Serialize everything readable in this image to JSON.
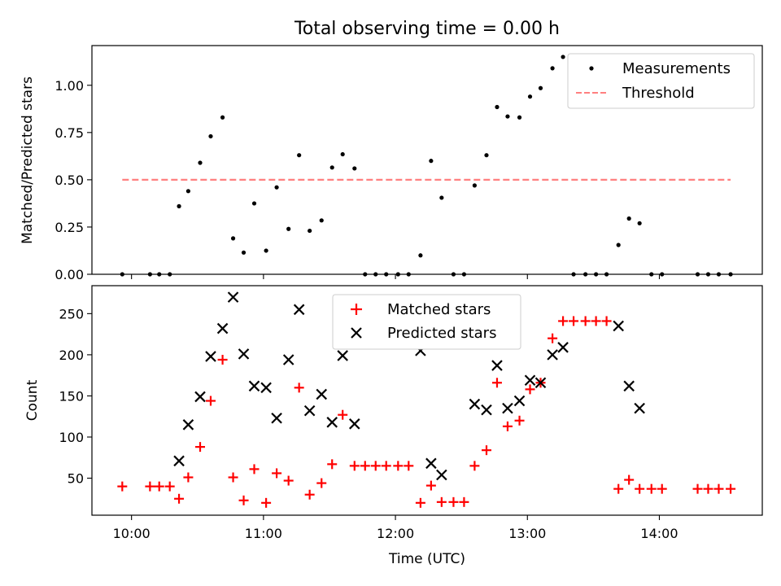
{
  "figure_title": "Total observing time = 0.00 h",
  "colors": {
    "measurement": "#000000",
    "threshold": "#ff8080",
    "matched": "#ff0000",
    "predicted": "#000000"
  },
  "chart_data": [
    {
      "type": "scatter",
      "panel": "top",
      "title": "Total observing time = 0.00 h",
      "xlabel": "",
      "ylabel": "Matched/Predicted stars",
      "xlim_hours": [
        9.7,
        14.78
      ],
      "ylim": [
        0,
        1.21
      ],
      "yticks": [
        0.0,
        0.25,
        0.5,
        0.75,
        1.0
      ],
      "ytick_labels": [
        "0.00",
        "0.25",
        "0.50",
        "0.75",
        "1.00"
      ],
      "xticks_hours": [
        10,
        11,
        12,
        13,
        14
      ],
      "legend": {
        "position": "top-right",
        "entries": [
          "Measurements",
          "Threshold"
        ]
      },
      "series": [
        {
          "name": "Measurements",
          "marker": "dot",
          "x": [
            9.93,
            10.14,
            10.21,
            10.29,
            10.36,
            10.43,
            10.52,
            10.6,
            10.69,
            10.77,
            10.85,
            10.93,
            11.02,
            11.1,
            11.19,
            11.27,
            11.35,
            11.44,
            11.52,
            11.6,
            11.69,
            11.77,
            11.85,
            11.93,
            12.02,
            12.1,
            12.19,
            12.27,
            12.35,
            12.44,
            12.52,
            12.6,
            12.69,
            12.77,
            12.85,
            12.94,
            13.02,
            13.1,
            13.19,
            13.27,
            13.35,
            13.44,
            13.52,
            13.6,
            13.69,
            13.77,
            13.85,
            13.94,
            14.02,
            14.29,
            14.37,
            14.45,
            14.54
          ],
          "y": [
            0.0,
            0.0,
            0.0,
            0.0,
            0.36,
            0.44,
            0.59,
            0.73,
            0.83,
            0.19,
            0.115,
            0.375,
            0.125,
            0.46,
            0.24,
            0.63,
            0.23,
            0.285,
            0.565,
            0.635,
            0.56,
            0.0,
            0.0,
            0.0,
            0.0,
            0.0,
            0.1,
            0.6,
            0.405,
            0.0,
            0.0,
            0.47,
            0.63,
            0.885,
            0.835,
            0.83,
            0.94,
            0.985,
            1.09,
            1.15,
            0.0,
            0.0,
            0.0,
            0.0,
            0.155,
            0.295,
            0.27,
            0.0,
            0.0,
            0.0,
            0.0,
            0.0,
            0.0
          ]
        },
        {
          "name": "Threshold",
          "style": "dashed",
          "x": [
            9.93,
            14.54
          ],
          "y": [
            0.5,
            0.5
          ]
        }
      ]
    },
    {
      "type": "scatter",
      "panel": "bottom",
      "title": "",
      "xlabel": "Time (UTC)",
      "ylabel": "Count",
      "xlim_hours": [
        9.7,
        14.78
      ],
      "ylim": [
        5,
        284
      ],
      "yticks": [
        50,
        100,
        150,
        200,
        250
      ],
      "ytick_labels": [
        "50",
        "100",
        "150",
        "200",
        "250"
      ],
      "xticks_hours": [
        10,
        11,
        12,
        13,
        14
      ],
      "xtick_labels": [
        "10:00",
        "11:00",
        "12:00",
        "13:00",
        "14:00"
      ],
      "legend": {
        "position": "top-center",
        "entries": [
          "Matched stars",
          "Predicted stars"
        ]
      },
      "series": [
        {
          "name": "Matched stars",
          "marker": "plus",
          "x": [
            9.93,
            10.14,
            10.21,
            10.29,
            10.36,
            10.43,
            10.52,
            10.6,
            10.69,
            10.77,
            10.85,
            10.93,
            11.02,
            11.1,
            11.19,
            11.27,
            11.35,
            11.44,
            11.52,
            11.6,
            11.69,
            11.77,
            11.85,
            11.93,
            12.02,
            12.1,
            12.19,
            12.27,
            12.35,
            12.44,
            12.52,
            12.6,
            12.69,
            12.77,
            12.85,
            12.94,
            13.02,
            13.1,
            13.19,
            13.27,
            13.35,
            13.44,
            13.52,
            13.6,
            13.69,
            13.77,
            13.85,
            13.94,
            14.02,
            14.29,
            14.37,
            14.45,
            14.54
          ],
          "y": [
            40,
            40,
            40,
            40,
            25,
            51,
            88,
            144,
            194,
            51,
            23,
            61,
            20,
            56,
            47,
            160,
            30,
            44,
            67,
            127,
            65,
            65,
            65,
            65,
            65,
            65,
            20,
            41,
            21,
            21,
            21,
            65,
            84,
            166,
            113,
            120,
            158,
            166,
            220,
            241,
            241,
            241,
            241,
            241,
            37,
            48,
            37,
            37,
            37,
            37,
            37,
            37,
            37
          ]
        },
        {
          "name": "Predicted stars",
          "marker": "x",
          "x": [
            10.36,
            10.43,
            10.52,
            10.6,
            10.69,
            10.77,
            10.85,
            10.93,
            11.02,
            11.1,
            11.19,
            11.27,
            11.35,
            11.44,
            11.52,
            11.6,
            11.69,
            12.19,
            12.27,
            12.35,
            12.6,
            12.69,
            12.77,
            12.85,
            12.94,
            13.02,
            13.1,
            13.19,
            13.27,
            13.69,
            13.77,
            13.85
          ],
          "y": [
            71,
            115,
            149,
            198,
            232,
            270,
            201,
            162,
            160,
            123,
            194,
            255,
            132,
            152,
            118,
            199,
            116,
            205,
            68,
            54,
            140,
            133,
            187,
            135,
            144,
            169,
            166,
            200,
            209,
            235,
            162,
            135
          ]
        }
      ]
    }
  ]
}
